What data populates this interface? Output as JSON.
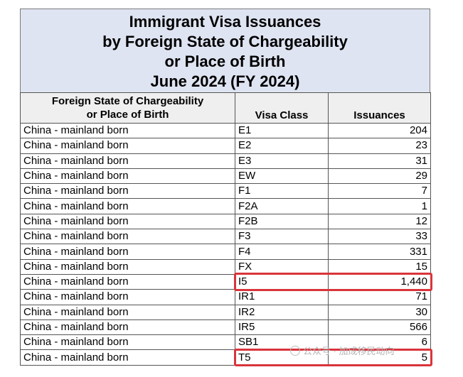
{
  "title": {
    "line1": "Immigrant Visa Issuances",
    "line2": "by Foreign State of Chargeability",
    "line3": "or Place of Birth",
    "line4": "June 2024 (FY 2024)"
  },
  "table": {
    "headers": {
      "country_line1": "Foreign State of Chargeability",
      "country_line2": "or Place of Birth",
      "visa_class": "Visa Class",
      "issuances": "Issuances"
    },
    "rows": [
      {
        "country": "China - mainland born",
        "visa_class": "E1",
        "issuances": "204"
      },
      {
        "country": "China - mainland born",
        "visa_class": "E2",
        "issuances": "23"
      },
      {
        "country": "China - mainland born",
        "visa_class": "E3",
        "issuances": "31"
      },
      {
        "country": "China - mainland born",
        "visa_class": "EW",
        "issuances": "29"
      },
      {
        "country": "China - mainland born",
        "visa_class": "F1",
        "issuances": "7"
      },
      {
        "country": "China - mainland born",
        "visa_class": "F2A",
        "issuances": "1"
      },
      {
        "country": "China - mainland born",
        "visa_class": "F2B",
        "issuances": "12"
      },
      {
        "country": "China - mainland born",
        "visa_class": "F3",
        "issuances": "33"
      },
      {
        "country": "China - mainland born",
        "visa_class": "F4",
        "issuances": "331"
      },
      {
        "country": "China - mainland born",
        "visa_class": "FX",
        "issuances": "15"
      },
      {
        "country": "China - mainland born",
        "visa_class": "I5",
        "issuances": "1,440"
      },
      {
        "country": "China - mainland born",
        "visa_class": "IR1",
        "issuances": "71"
      },
      {
        "country": "China - mainland born",
        "visa_class": "IR2",
        "issuances": "30"
      },
      {
        "country": "China - mainland born",
        "visa_class": "IR5",
        "issuances": "566"
      },
      {
        "country": "China - mainland born",
        "visa_class": "SB1",
        "issuances": "6"
      },
      {
        "country": "China - mainland born",
        "visa_class": "T5",
        "issuances": "5"
      }
    ]
  },
  "watermark": {
    "text": "公众号 · 加成移民动向"
  },
  "colors": {
    "title_bg": "#dfe4f2",
    "header_bg": "#efefef",
    "highlight": "#d9343b"
  }
}
